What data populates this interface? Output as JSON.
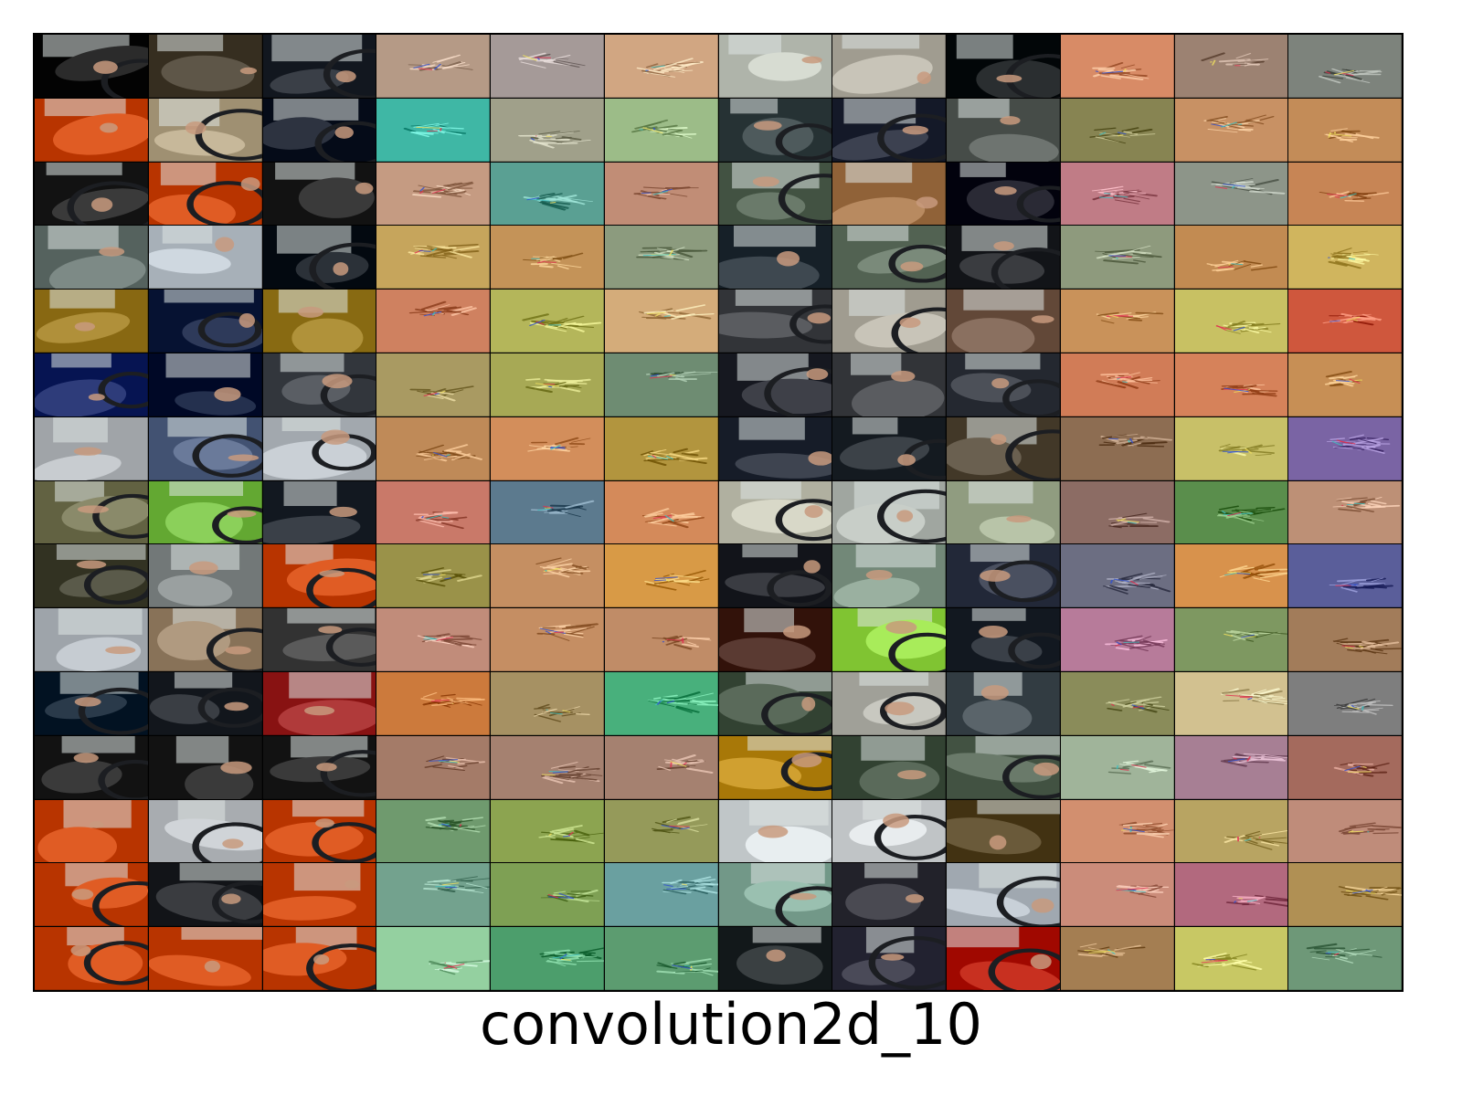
{
  "figure": {
    "title": "convolution2d_10",
    "grid": {
      "rows": 15,
      "columns": 12
    },
    "column_groups": [
      {
        "columns": [
          0,
          1,
          2
        ],
        "kind": "photo"
      },
      {
        "columns": [
          3,
          4,
          5
        ],
        "kind": "filter"
      },
      {
        "columns": [
          6,
          7,
          8
        ],
        "kind": "photo"
      },
      {
        "columns": [
          9,
          10,
          11
        ],
        "kind": "filter"
      }
    ],
    "filter_backgrounds": [
      [
        "#b59a86",
        "#a59a98",
        "#d1a682",
        "#d88b66",
        "#9c8272",
        "#7d837c"
      ],
      [
        "#3fb7a5",
        "#a0a08a",
        "#9cbc88",
        "#878452",
        "#c89164",
        "#c38c58"
      ],
      [
        "#c59b82",
        "#5aa093",
        "#c18d76",
        "#c07c86",
        "#8d9589",
        "#c78555"
      ],
      [
        "#c6a55c",
        "#c49358",
        "#8c9b7e",
        "#8e9a7d",
        "#c28b52",
        "#d0b55e"
      ],
      [
        "#cf8160",
        "#b4b65a",
        "#d4ac7a",
        "#c9925a",
        "#c8c163",
        "#cf573d"
      ],
      [
        "#a99a62",
        "#a7a955",
        "#6e8c72",
        "#d17c57",
        "#d6825a",
        "#c78f55"
      ],
      [
        "#bf8a58",
        "#d38e5b",
        "#b2953e",
        "#8d6d52",
        "#c8c068",
        "#7a64a4"
      ],
      [
        "#c97969",
        "#5c7a8e",
        "#d48a5a",
        "#8c6c64",
        "#5a8e4c",
        "#bd9076"
      ],
      [
        "#9a9249",
        "#c58f62",
        "#d89a46",
        "#6c6e82",
        "#d8924c",
        "#5a5e9a"
      ],
      [
        "#c18c7a",
        "#c58e63",
        "#c08c67",
        "#b77b9a",
        "#7e9861",
        "#a27c5a"
      ],
      [
        "#cc7a3c",
        "#a69163",
        "#48b07c",
        "#8a8c5a",
        "#d2c190",
        "#7e7e7e"
      ],
      [
        "#a47b68",
        "#a58170",
        "#a58170",
        "#a0b49a",
        "#a77f94",
        "#a46a5d"
      ],
      [
        "#6f9a6e",
        "#8ca450",
        "#959a5a",
        "#d28f6f",
        "#b8a462",
        "#bf8c7a"
      ],
      [
        "#73a28e",
        "#7ea054",
        "#6aa0a0",
        "#cb8c7a",
        "#b2697e",
        "#b09054"
      ],
      [
        "#94d0a0",
        "#4c9e6c",
        "#5c9c70",
        "#a47e52",
        "#c8c864",
        "#6e9878"
      ]
    ],
    "photo_palette": [
      [
        "#2b2b2b",
        "#5e5648",
        "#3a3f47",
        "#d7dcd2",
        "#c8c4b8",
        "#2a2e30"
      ],
      [
        "#e05c24",
        "#c7b89a",
        "#2d3340",
        "#4e5a5c",
        "#3c4150",
        "#6e7470"
      ],
      [
        "#3a3a3a",
        "#e05c24",
        "#3a3a3a",
        "#6a7a6a",
        "#b88a60",
        "#2a2a35"
      ],
      [
        "#7d8a86",
        "#cfd8e0",
        "#2b3138",
        "#3e4850",
        "#7a8a7a",
        "#3a3c40"
      ],
      [
        "#b0903a",
        "#2e3a5a",
        "#b0923a",
        "#5a5c60",
        "#c8c4b8",
        "#8a7060"
      ],
      [
        "#2e3c7a",
        "#24304e",
        "#5a5e64",
        "#3e4048",
        "#5a5c60",
        "#4c5058"
      ],
      [
        "#c8ccd0",
        "#6a7a9a",
        "#cad0d6",
        "#3e4450",
        "#3c4248",
        "#6a6050"
      ],
      [
        "#8a8a6a",
        "#8bd05a",
        "#3a4048",
        "#d8d8c8",
        "#c8cec8",
        "#b8c4a8"
      ],
      [
        "#5a5a4a",
        "#9aa0a0",
        "#e05c24",
        "#3a3c42",
        "#9ab0a0",
        "#4a5060"
      ],
      [
        "#c6ccd2",
        "#b09a80",
        "#5a5a5a",
        "#5a3a32",
        "#a8ec5a",
        "#3a4048"
      ],
      [
        "#2a3a4a",
        "#3a3e44",
        "#b03a3a",
        "#5a6a5a",
        "#c8c8c0",
        "#5a646a"
      ],
      [
        "#3a3a3a",
        "#3a3a3a",
        "#3a3a3a",
        "#d0a030",
        "#5a6a5a",
        "#6a7a6a"
      ],
      [
        "#e05c24",
        "#d0d4d8",
        "#e05c24",
        "#e8eef0",
        "#e8ecee",
        "#6a5a3a"
      ],
      [
        "#e05c24",
        "#3a3c40",
        "#e05c24",
        "#9ac0b0",
        "#4a4a52",
        "#c8d0d8"
      ],
      [
        "#e05c24",
        "#e05c24",
        "#e05c24",
        "#3a4042",
        "#4a4a58",
        "#c83020"
      ]
    ]
  }
}
